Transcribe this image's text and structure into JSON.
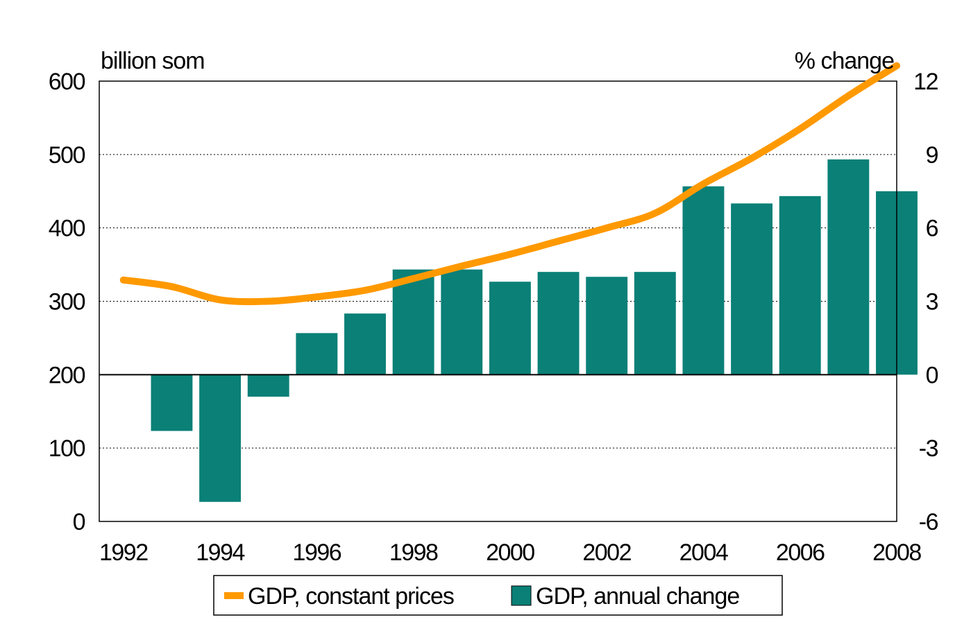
{
  "chart_data": {
    "type": "bar",
    "title": "",
    "x": [
      1992,
      1993,
      1994,
      1995,
      1996,
      1997,
      1998,
      1999,
      2000,
      2001,
      2002,
      2003,
      2004,
      2005,
      2006,
      2007,
      2008
    ],
    "x_tick_labels": [
      "1992",
      "1994",
      "1996",
      "1998",
      "2000",
      "2002",
      "2004",
      "2006",
      "2008"
    ],
    "y_left": {
      "label": "billion som",
      "lim": [
        0,
        600
      ],
      "tick_labels": [
        "0",
        "100",
        "200",
        "300",
        "400",
        "500",
        "600"
      ]
    },
    "y_right": {
      "label": "% change",
      "lim": [
        -6,
        12
      ],
      "tick_labels": [
        "-6",
        "-3",
        "0",
        "3",
        "6",
        "9",
        "12"
      ]
    },
    "grid": "horizontal-dotted",
    "legend_position": "bottom-center",
    "series": [
      {
        "name": "GDP, constant prices",
        "type": "line",
        "axis": "left",
        "color": "#FF9900",
        "values": [
          329,
          320,
          302,
          300,
          306,
          315,
          331,
          348,
          364,
          382,
          400,
          420,
          460,
          495,
          535,
          580,
          621
        ]
      },
      {
        "name": "GDP, annual change",
        "type": "bar",
        "axis": "right",
        "color": "#0A8077",
        "values": [
          null,
          -2.3,
          -5.2,
          -0.9,
          1.7,
          2.5,
          4.3,
          4.3,
          3.8,
          4.2,
          4.0,
          4.2,
          7.7,
          7.0,
          7.3,
          8.8,
          7.5
        ]
      }
    ]
  }
}
